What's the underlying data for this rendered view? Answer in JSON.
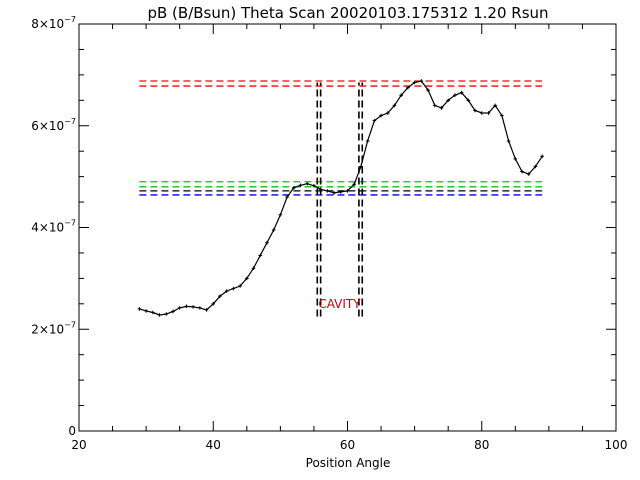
{
  "chart_data": {
    "type": "line",
    "title": "pB (B/Bsun) Theta Scan 20020103.175312 1.20 Rsun",
    "xlabel": "Position Angle",
    "ylabel": "",
    "xlim": [
      20,
      100
    ],
    "ylim": [
      0,
      8e-07
    ],
    "grid": false,
    "x_ticks": [
      {
        "value": 20,
        "label": "20"
      },
      {
        "value": 40,
        "label": "40"
      },
      {
        "value": 60,
        "label": "60"
      },
      {
        "value": 80,
        "label": "80"
      },
      {
        "value": 100,
        "label": "100"
      }
    ],
    "y_ticks": [
      {
        "value": 0,
        "mant": "0",
        "exp": ""
      },
      {
        "value": 2e-07,
        "mant": "2×10",
        "exp": "−7"
      },
      {
        "value": 4e-07,
        "mant": "4×10",
        "exp": "−7"
      },
      {
        "value": 6e-07,
        "mant": "6×10",
        "exp": "−7"
      },
      {
        "value": 8e-07,
        "mant": "8×10",
        "exp": "−7"
      }
    ],
    "series": [
      {
        "style": "solid",
        "color": "#000000",
        "x": [
          29.0,
          30.0,
          31.0,
          32.0,
          33.0,
          34.0,
          35.0,
          36.0,
          37.0,
          38.0,
          39.0,
          40.0,
          41.0,
          42.0,
          43.0,
          44.0,
          45.0,
          46.0,
          47.0,
          48.0,
          49.0,
          50.0,
          51.0,
          52.0,
          53.0,
          54.0,
          55.0,
          56.0,
          57.0,
          58.0,
          59.0,
          60.0,
          61.0,
          62.0,
          63.0,
          64.0,
          65.0,
          66.0,
          67.0,
          68.0,
          69.0,
          70.0,
          71.0,
          72.0,
          73.0,
          74.0,
          75.0,
          76.0,
          77.0,
          78.0,
          79.0,
          80.0,
          81.0,
          82.0,
          83.0,
          84.0,
          85.0,
          86.0,
          87.0,
          88.0,
          89.0
        ],
        "y": [
          2.4e-07,
          2.36e-07,
          2.33e-07,
          2.28e-07,
          2.3e-07,
          2.35e-07,
          2.42e-07,
          2.45e-07,
          2.44e-07,
          2.42e-07,
          2.38e-07,
          2.5e-07,
          2.65e-07,
          2.75e-07,
          2.8e-07,
          2.85e-07,
          3e-07,
          3.2e-07,
          3.45e-07,
          3.7e-07,
          3.95e-07,
          4.25e-07,
          4.6e-07,
          4.78e-07,
          4.83e-07,
          4.86e-07,
          4.82e-07,
          4.75e-07,
          4.72e-07,
          4.68e-07,
          4.7e-07,
          4.72e-07,
          4.85e-07,
          5.2e-07,
          5.7e-07,
          6.1e-07,
          6.2e-07,
          6.25e-07,
          6.4e-07,
          6.6e-07,
          6.75e-07,
          6.85e-07,
          6.88e-07,
          6.7e-07,
          6.4e-07,
          6.35e-07,
          6.5e-07,
          6.6e-07,
          6.65e-07,
          6.5e-07,
          6.3e-07,
          6.25e-07,
          6.25e-07,
          6.4e-07,
          6.2e-07,
          5.7e-07,
          5.35e-07,
          5.1e-07,
          5.05e-07,
          5.2e-07,
          5.4e-07
        ]
      }
    ],
    "reference_lines": [
      {
        "orientation": "h",
        "value": 6.88e-07,
        "color": "#ff0000",
        "style": "dashed",
        "x_range": [
          29,
          89
        ]
      },
      {
        "orientation": "h",
        "value": 6.78e-07,
        "color": "#ff0000",
        "style": "dashed",
        "x_range": [
          29,
          89
        ]
      },
      {
        "orientation": "h",
        "value": 4.9e-07,
        "color": "#00cc00",
        "style": "dashed",
        "x_range": [
          29,
          89
        ]
      },
      {
        "orientation": "h",
        "value": 4.8e-07,
        "color": "#00cc00",
        "style": "dashed",
        "x_range": [
          29,
          89
        ]
      },
      {
        "orientation": "h",
        "value": 4.72e-07,
        "color": "#000000",
        "style": "dashed",
        "x_range": [
          29,
          89
        ]
      },
      {
        "orientation": "h",
        "value": 4.64e-07,
        "color": "#0000ff",
        "style": "dashed",
        "x_range": [
          29,
          89
        ]
      },
      {
        "orientation": "v",
        "value": 55.5,
        "color": "#000000",
        "style": "dashed",
        "y_range": [
          2.25e-07,
          6.85e-07
        ]
      },
      {
        "orientation": "v",
        "value": 56.0,
        "color": "#000000",
        "style": "dashed",
        "y_range": [
          2.25e-07,
          6.85e-07
        ]
      },
      {
        "orientation": "v",
        "value": 61.7,
        "color": "#000000",
        "style": "dashed",
        "y_range": [
          2.25e-07,
          6.85e-07
        ]
      },
      {
        "orientation": "v",
        "value": 62.2,
        "color": "#000000",
        "style": "dashed",
        "y_range": [
          2.25e-07,
          6.85e-07
        ]
      }
    ],
    "annotations": [
      {
        "text": "CAVITY",
        "x": 58.8,
        "y": 2.5e-07,
        "color": "#cc0000"
      }
    ]
  }
}
